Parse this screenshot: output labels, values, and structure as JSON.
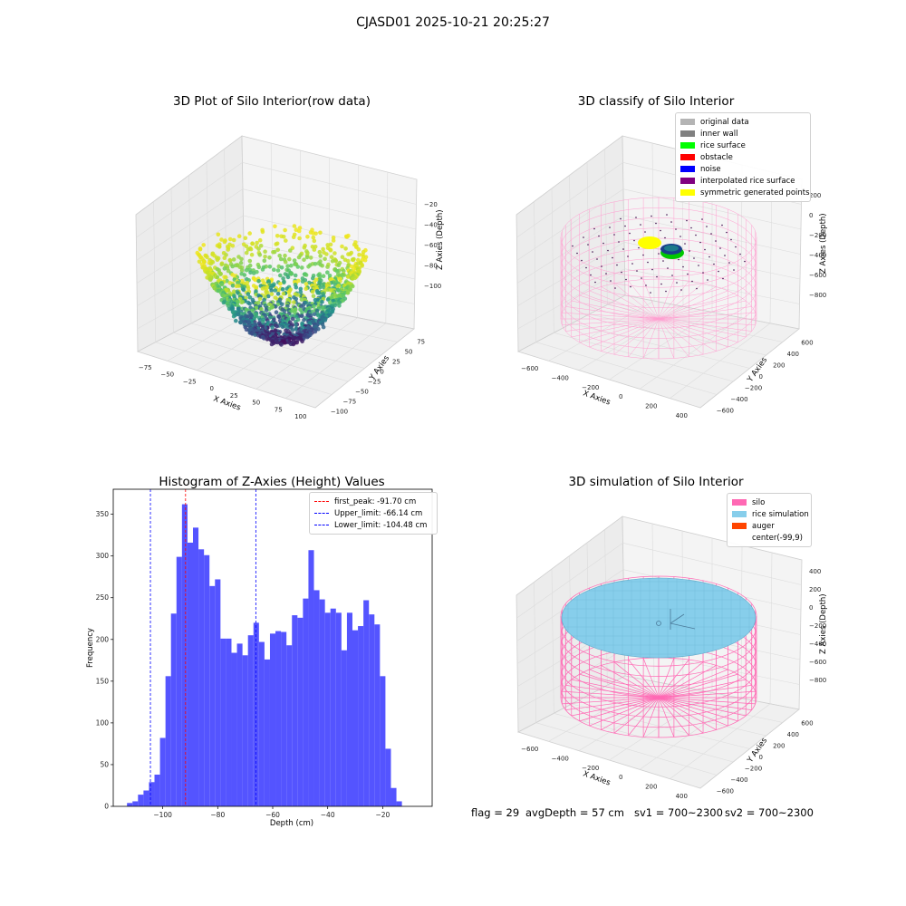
{
  "suptitle": "CJASD01 2025-10-21 20:25:27",
  "panel1": {
    "title": "3D Plot of Silo Interior(row data)",
    "xlabel": "X Axies",
    "ylabel": "Y Axies",
    "zlabel": "Z Axies (Depth)",
    "xticks": [
      "−75",
      "−50",
      "−25",
      "0",
      "25",
      "50",
      "75",
      "100"
    ],
    "yticks": [
      "−100",
      "−75",
      "−50",
      "−25",
      "0",
      "25",
      "50",
      "75"
    ],
    "zticks": [
      "−20",
      "−40",
      "−60",
      "−80",
      "−100"
    ]
  },
  "panel2": {
    "title": "3D classify of Silo Interior",
    "xlabel": "X Axies",
    "ylabel": "Y Axies",
    "zlabel": "Z Axies (Depth)",
    "xticks": [
      "−600",
      "−400",
      "−200",
      "0",
      "200",
      "400"
    ],
    "yticks": [
      "−600",
      "−400",
      "−200",
      "0",
      "200",
      "400",
      "600"
    ],
    "zticks": [
      "200",
      "0",
      "−200",
      "−400",
      "−600",
      "−800"
    ],
    "legend": [
      {
        "label": "original data",
        "color": "#b4b4b4"
      },
      {
        "label": "inner wall",
        "color": "#808080"
      },
      {
        "label": "rice surface",
        "color": "#00ff00"
      },
      {
        "label": "obstacle",
        "color": "#ff0000"
      },
      {
        "label": "noise",
        "color": "#0000ff"
      },
      {
        "label": "interpolated rice surface",
        "color": "#800080"
      },
      {
        "label": "symmetric generated points",
        "color": "#ffff00"
      }
    ]
  },
  "panel3": {
    "title": "3D simulation of Silo Interior",
    "xlabel": "X Axies",
    "ylabel": "Y Axies",
    "zlabel": "Z Axies (Depth)",
    "xticks": [
      "−600",
      "−400",
      "−200",
      "0",
      "200",
      "400"
    ],
    "yticks": [
      "−600",
      "−400",
      "−200",
      "0",
      "200",
      "400",
      "600"
    ],
    "zticks": [
      "400",
      "200",
      "0",
      "−200",
      "−400",
      "−600",
      "−800"
    ],
    "legend": [
      {
        "label": "silo",
        "color": "#ff69b4"
      },
      {
        "label": "rice simulation",
        "color": "#87ceeb"
      },
      {
        "label": "auger",
        "color": "#ff4500"
      },
      {
        "label": "center(-99,9)",
        "color": ""
      }
    ]
  },
  "chart_data": {
    "type": "bar",
    "title": "Histogram of Z-Axies (Height) Values",
    "xlabel": "Depth (cm)",
    "ylabel": "Frequency",
    "xlim": [
      -118,
      -2
    ],
    "ylim": [
      0,
      380
    ],
    "xticks": [
      -100,
      -80,
      -60,
      -40,
      -20
    ],
    "yticks": [
      0,
      50,
      100,
      150,
      200,
      250,
      300,
      350
    ],
    "bar_color": "#4b4bff",
    "bin_start": -113.0,
    "bin_width": 2.0,
    "values": [
      4,
      6,
      14,
      19,
      29,
      38,
      82,
      156,
      231,
      299,
      362,
      316,
      334,
      308,
      301,
      264,
      272,
      201,
      201,
      184,
      195,
      181,
      205,
      220,
      197,
      176,
      207,
      210,
      209,
      193,
      229,
      226,
      249,
      307,
      259,
      248,
      232,
      237,
      232,
      187,
      232,
      211,
      216,
      247,
      230,
      218,
      156,
      69,
      22,
      6
    ],
    "vlines": [
      {
        "label": "first_peak: -91.70 cm",
        "value": -91.7,
        "color": "#ff0000"
      },
      {
        "label": "Upper_limit: -66.14 cm",
        "value": -66.14,
        "color": "#0000ff"
      },
      {
        "label": "Lower_limit: -104.48 cm",
        "value": -104.48,
        "color": "#0000ff"
      }
    ]
  },
  "footer": {
    "flag": "flag = 29",
    "avg": "avgDepth = 57 cm",
    "sv1": "sv1 = 700~2300",
    "sv2": "sv2 = 700~2300"
  }
}
